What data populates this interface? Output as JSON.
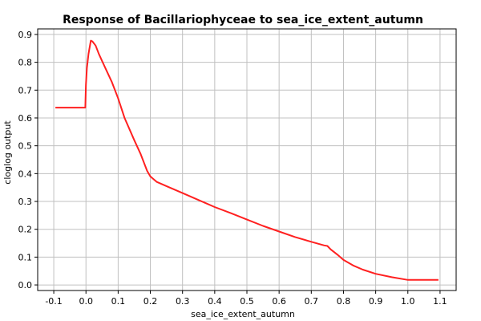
{
  "chart_data": {
    "type": "line",
    "title": "Response of Bacillariophyceae to sea_ice_extent_autumn",
    "xlabel": "sea_ice_extent_autumn",
    "ylabel": "cloglog output",
    "xlim": [
      -0.15,
      1.15
    ],
    "ylim": [
      -0.02,
      0.92
    ],
    "xticks": [
      -0.1,
      0.0,
      0.1,
      0.2,
      0.3,
      0.4,
      0.5,
      0.6,
      0.7,
      0.8,
      0.9,
      1.0,
      1.1
    ],
    "xtick_labels": [
      "-0.1",
      "0.0",
      "0.1",
      "0.2",
      "0.3",
      "0.4",
      "0.5",
      "0.6",
      "0.7",
      "0.8",
      "0.9",
      "1.0",
      "1.1"
    ],
    "yticks": [
      0.0,
      0.1,
      0.2,
      0.3,
      0.4,
      0.5,
      0.6,
      0.7,
      0.8,
      0.9
    ],
    "ytick_labels": [
      "0.0",
      "0.1",
      "0.2",
      "0.3",
      "0.4",
      "0.5",
      "0.6",
      "0.7",
      "0.8",
      "0.9"
    ],
    "grid": true,
    "series": [
      {
        "color": "#ff2020",
        "x": [
          -0.095,
          -0.002,
          0.0,
          0.003,
          0.008,
          0.015,
          0.02,
          0.03,
          0.04,
          0.06,
          0.08,
          0.1,
          0.12,
          0.15,
          0.17,
          0.18,
          0.19,
          0.2,
          0.205,
          0.22,
          0.25,
          0.3,
          0.35,
          0.4,
          0.45,
          0.5,
          0.55,
          0.6,
          0.65,
          0.7,
          0.74,
          0.75,
          0.76,
          0.78,
          0.8,
          0.83,
          0.86,
          0.9,
          0.95,
          1.0,
          1.095
        ],
        "y": [
          0.637,
          0.637,
          0.72,
          0.78,
          0.83,
          0.878,
          0.875,
          0.86,
          0.83,
          0.78,
          0.73,
          0.67,
          0.6,
          0.52,
          0.47,
          0.44,
          0.41,
          0.39,
          0.385,
          0.37,
          0.355,
          0.33,
          0.305,
          0.28,
          0.258,
          0.235,
          0.212,
          0.192,
          0.172,
          0.155,
          0.142,
          0.14,
          0.128,
          0.11,
          0.09,
          0.07,
          0.055,
          0.04,
          0.028,
          0.018,
          0.018
        ]
      }
    ]
  }
}
